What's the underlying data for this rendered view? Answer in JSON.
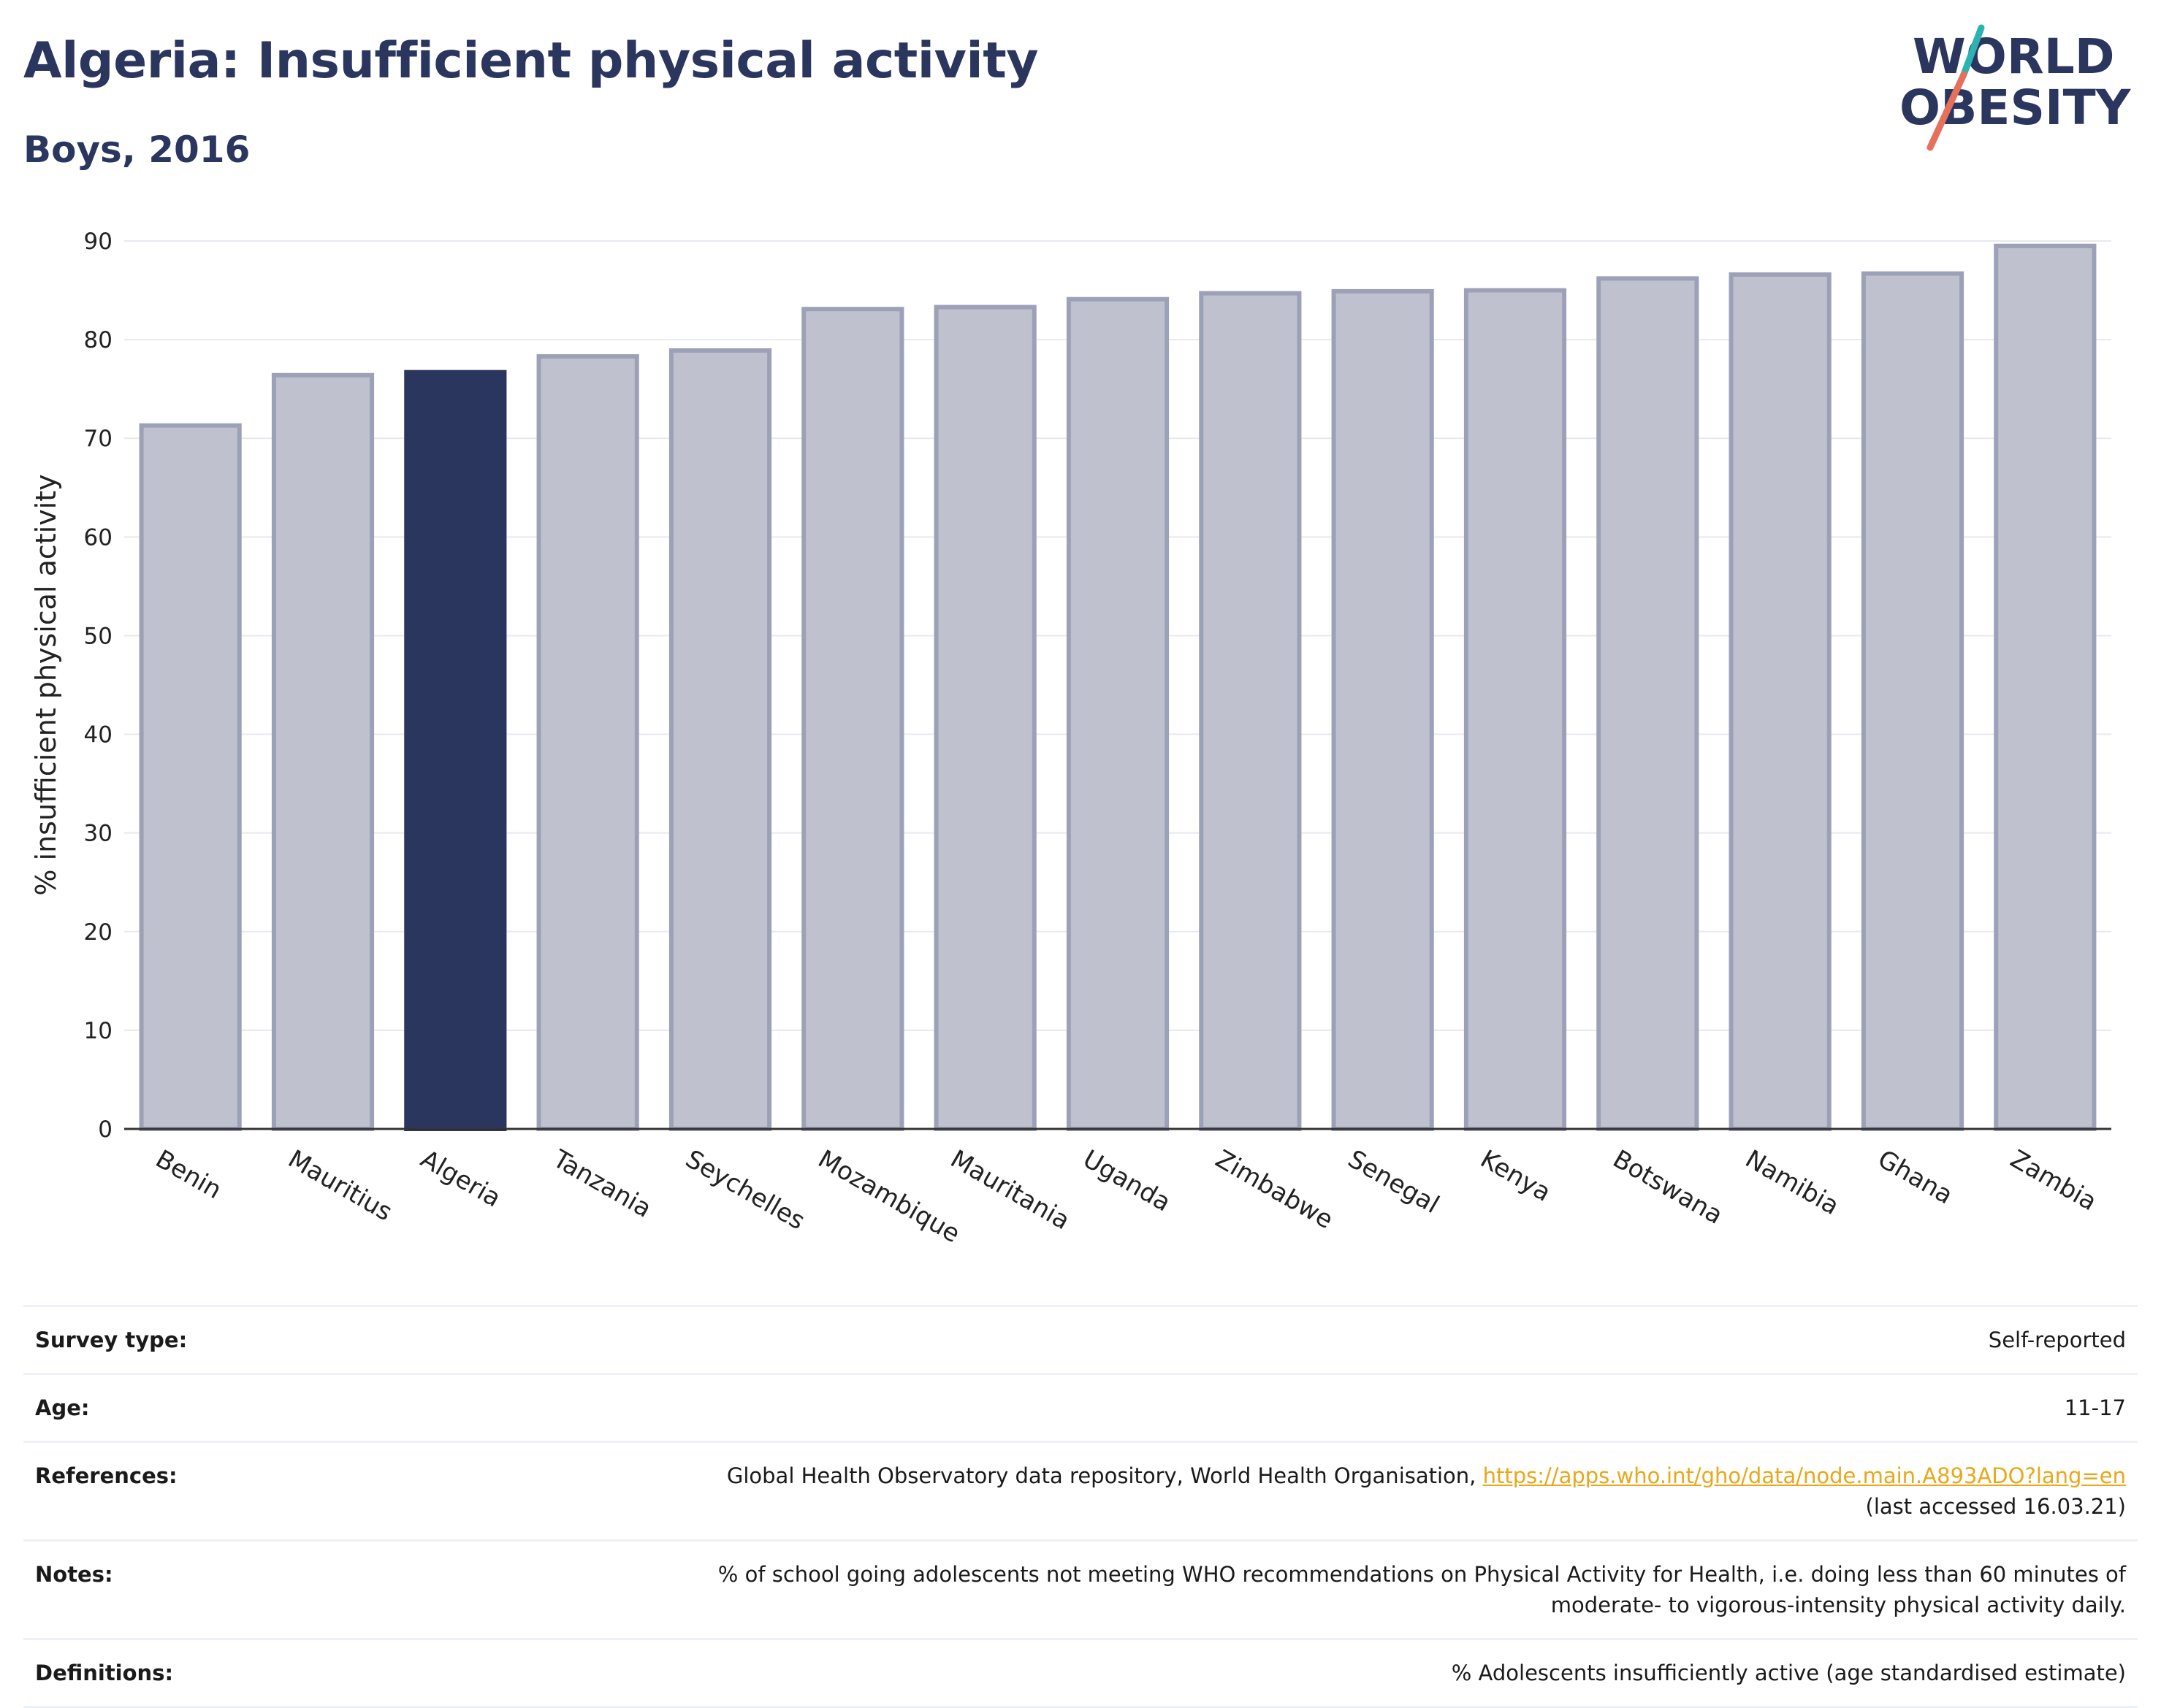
{
  "header": {
    "title": "Algeria: Insufficient physical activity",
    "subtitle": "Boys, 2016"
  },
  "logo": {
    "line1": "WORLD",
    "line2": "OBESITY",
    "accent_colors": [
      "#2bb3b1",
      "#e5705b"
    ]
  },
  "chart_data": {
    "type": "bar",
    "title": "Algeria: Insufficient physical activity",
    "subtitle": "Boys, 2016",
    "xlabel": "",
    "ylabel": "% insufficient physical activity",
    "ylim": [
      0,
      90
    ],
    "yticks": [
      0,
      10,
      20,
      30,
      40,
      50,
      60,
      70,
      80,
      90
    ],
    "grid": true,
    "categories": [
      "Benin",
      "Mauritius",
      "Algeria",
      "Tanzania",
      "Seychelles",
      "Mozambique",
      "Mauritania",
      "Uganda",
      "Zimbabwe",
      "Senegal",
      "Kenya",
      "Botswana",
      "Namibia",
      "Ghana",
      "Zambia"
    ],
    "values": [
      71.3,
      76.4,
      76.7,
      78.3,
      78.9,
      83.1,
      83.3,
      84.1,
      84.7,
      84.9,
      85.0,
      86.2,
      86.6,
      86.7,
      89.5
    ],
    "highlight": "Algeria",
    "colors": {
      "bar": "#bfc2ce",
      "bar_border": "#9ca1b7",
      "highlight": "#2b365f",
      "grid": "#e8e9ef",
      "axis": "#333333"
    }
  },
  "meta": [
    {
      "key": "Survey type:",
      "value": "Self-reported"
    },
    {
      "key": "Age:",
      "value": "11-17"
    },
    {
      "key": "References:",
      "value": "Global Health Observatory data repository, World Health Organisation,",
      "link": "https://apps.who.int/gho/data/node.main.A893ADO?lang=en",
      "value2": "(last accessed 16.03.21)"
    },
    {
      "key": "Notes:",
      "value": "% of school going adolescents not meeting WHO recommendations on Physical Activity for Health, i.e. doing less than 60 minutes of",
      "value2": "moderate- to vigorous-intensity physical activity daily."
    },
    {
      "key": "Definitions:",
      "value": "% Adolescents insufficiently active (age standardised estimate)"
    }
  ]
}
